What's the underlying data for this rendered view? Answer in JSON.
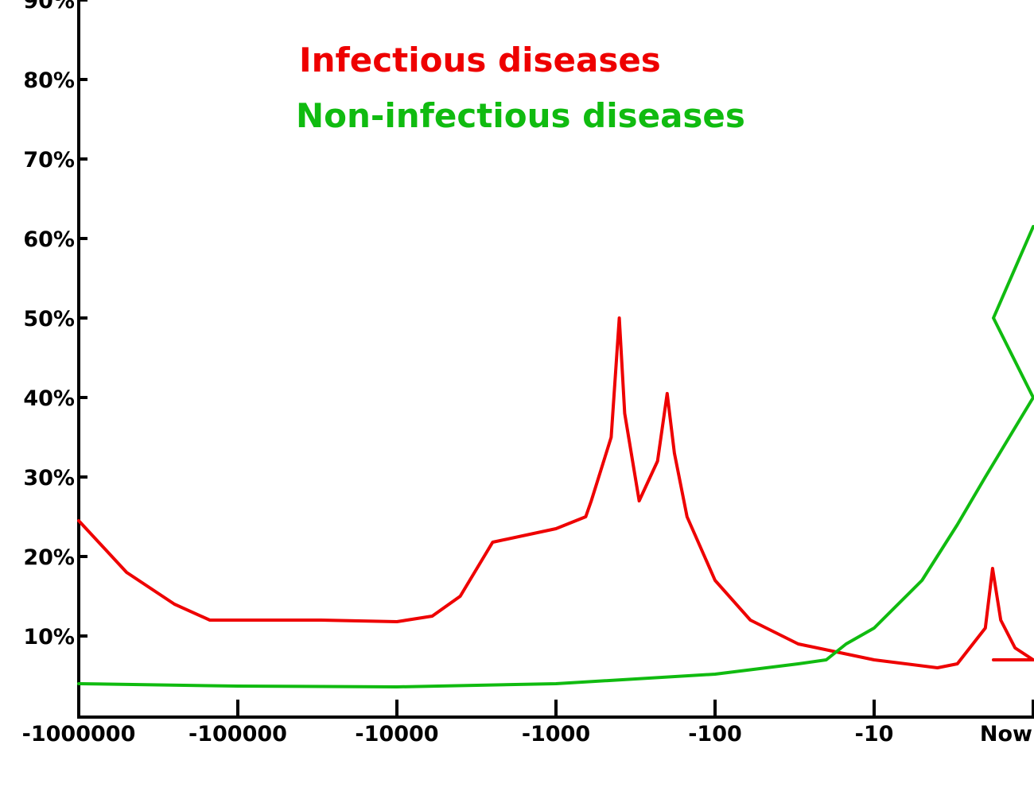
{
  "chart_data": {
    "type": "line",
    "title": "",
    "xlabel": "",
    "ylabel": "",
    "x_scale": "log-negative-time",
    "x_ticks": [
      -1000000,
      -100000,
      -10000,
      -1000,
      -100,
      -10,
      0
    ],
    "x_tick_labels": [
      "-1000000",
      "-100000",
      "-10000",
      "-1000",
      "-100",
      "-10",
      "Now"
    ],
    "y_ticks": [
      10,
      20,
      30,
      40,
      50,
      60,
      70,
      80,
      90
    ],
    "y_tick_labels": [
      "10%",
      "20%",
      "30%",
      "40%",
      "50%",
      "60%",
      "70%",
      "80%",
      "90%"
    ],
    "ylim": [
      0,
      90
    ],
    "grid": false,
    "legend_position": "top-center",
    "series": [
      {
        "name": "Infectious diseases",
        "color": "#ee0000",
        "points": [
          [
            -1000000,
            24.5
          ],
          [
            -500000,
            18
          ],
          [
            -250000,
            14
          ],
          [
            -150000,
            12
          ],
          [
            -100000,
            12
          ],
          [
            -30000,
            12
          ],
          [
            -10000,
            11.8
          ],
          [
            -6000,
            12.5
          ],
          [
            -4000,
            15
          ],
          [
            -2500,
            21.8
          ],
          [
            -1000,
            23.5
          ],
          [
            -650,
            25
          ],
          [
            -600,
            27
          ],
          [
            -450,
            35
          ],
          [
            -400,
            50
          ],
          [
            -370,
            38
          ],
          [
            -300,
            27
          ],
          [
            -230,
            32
          ],
          [
            -200,
            40.5
          ],
          [
            -180,
            33
          ],
          [
            -150,
            25
          ],
          [
            -100,
            17
          ],
          [
            -60,
            12
          ],
          [
            -30,
            9
          ],
          [
            -10,
            7
          ],
          [
            -4,
            6
          ],
          [
            -3,
            6.5
          ],
          [
            -2,
            11
          ],
          [
            -1.8,
            18.5
          ],
          [
            -1.6,
            12
          ],
          [
            -1.3,
            8.5
          ],
          [
            -1,
            7
          ],
          [
            -0.5,
            7
          ]
        ]
      },
      {
        "name": "Non-infectious diseases",
        "color": "#10bb10",
        "points": [
          [
            -1000000,
            4
          ],
          [
            -100000,
            3.7
          ],
          [
            -10000,
            3.6
          ],
          [
            -1000,
            4
          ],
          [
            -100,
            5.2
          ],
          [
            -30,
            6.5
          ],
          [
            -20,
            7
          ],
          [
            -15,
            9
          ],
          [
            -10,
            11
          ],
          [
            -5,
            17
          ],
          [
            -3,
            24
          ],
          [
            -2,
            30
          ],
          [
            -1,
            40
          ],
          [
            -0.5,
            50
          ],
          [
            0,
            61.5
          ]
        ]
      }
    ]
  }
}
